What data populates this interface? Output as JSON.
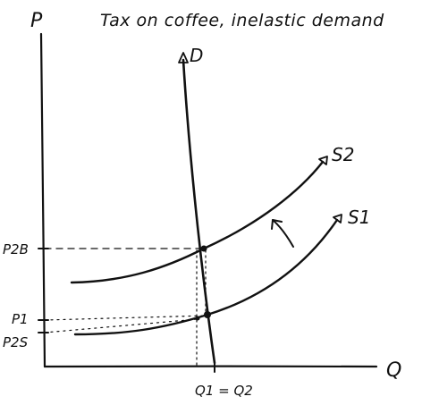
{
  "title": "Tax on coffee, inelastic demand",
  "axes": {
    "y_label": "P",
    "x_label": "Q"
  },
  "curves": {
    "demand": "D",
    "supply_original": "S1",
    "supply_shifted": "S2"
  },
  "price_labels": {
    "buyer_price": "P2B",
    "original_price": "P1",
    "seller_price": "P2S"
  },
  "quantity_label": "Q1 = Q2"
}
